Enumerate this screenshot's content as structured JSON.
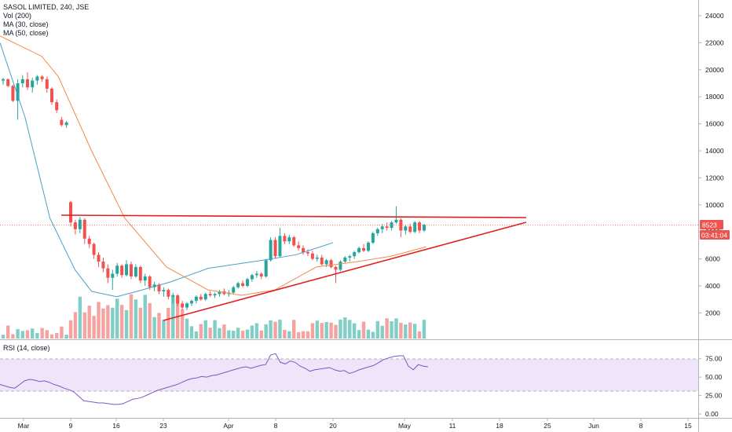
{
  "header": {
    "title": "SASOL LIMITED, 240, JSE",
    "volume_label": "Vol (200)",
    "ma30_label": "MA (30, close)",
    "ma50_label": "MA (50, close)"
  },
  "rsi_pane": {
    "label": "RSI (14, close)",
    "ticks": [
      "75.00",
      "50.00",
      "25.00",
      "0.00"
    ]
  },
  "price_axis": {
    "ticks": [
      "24000",
      "22000",
      "20000",
      "18000",
      "16000",
      "14000",
      "12000",
      "10000",
      "8000",
      "6000",
      "4000",
      "2000"
    ]
  },
  "time_axis": {
    "ticks": [
      "Mar",
      "9",
      "16",
      "23",
      "Apr",
      "8",
      "20",
      "May",
      "11",
      "18",
      "25",
      "Jun",
      "8",
      "15"
    ]
  },
  "last_price": {
    "value": "8523",
    "countdown": "03:41:04"
  },
  "colors": {
    "up": "#26a69a",
    "down": "#ef5350",
    "ma30": "#4a9fc8",
    "ma50": "#f08a4b",
    "trendline": "#e31e1e",
    "rsi": "#7e57c2",
    "rsi_band": "#f0e4fb",
    "vol_up": "#7fcfc6",
    "vol_down": "#f4a3a0"
  },
  "chart_data": [
    {
      "type": "candlestick",
      "title": "SASOL LIMITED, 240, JSE",
      "ylim": [
        1000,
        25200
      ],
      "candles": [
        [
          19200,
          19400,
          18900,
          19300
        ],
        [
          19300,
          19350,
          18700,
          18800
        ],
        [
          18800,
          18900,
          17600,
          17700
        ],
        [
          17700,
          19300,
          16300,
          19000
        ],
        [
          19000,
          19600,
          18700,
          19300
        ],
        [
          19300,
          19800,
          18500,
          18700
        ],
        [
          18700,
          19400,
          18300,
          19200
        ],
        [
          19200,
          19600,
          18900,
          19500
        ],
        [
          19500,
          19600,
          19100,
          19300
        ],
        [
          19300,
          19500,
          18300,
          18600
        ],
        [
          18600,
          18700,
          17400,
          17600
        ],
        [
          17600,
          17800,
          16800,
          17000
        ],
        [
          16300,
          16500,
          15800,
          15900
        ],
        [
          15900,
          16200,
          15700,
          16100
        ],
        [
          10200,
          10300,
          8400,
          8700
        ],
        [
          8700,
          8900,
          7800,
          8200
        ],
        [
          8200,
          9100,
          7900,
          8900
        ],
        [
          8900,
          9000,
          7100,
          7500
        ],
        [
          7500,
          7700,
          6800,
          7100
        ],
        [
          7100,
          7200,
          6000,
          6300
        ],
        [
          6300,
          6500,
          5400,
          5800
        ],
        [
          5800,
          6100,
          5000,
          5300
        ],
        [
          5300,
          5600,
          4200,
          4600
        ],
        [
          4600,
          5200,
          3700,
          4900
        ],
        [
          4900,
          5700,
          4700,
          5500
        ],
        [
          5500,
          5600,
          4600,
          4800
        ],
        [
          4800,
          5900,
          4700,
          5600
        ],
        [
          5600,
          5800,
          4500,
          4700
        ],
        [
          4700,
          5600,
          4600,
          5400
        ],
        [
          5400,
          5500,
          4200,
          4400
        ],
        [
          4400,
          4900,
          4000,
          4700
        ],
        [
          4700,
          4800,
          3700,
          3900
        ],
        [
          3900,
          4300,
          3600,
          4100
        ],
        [
          4100,
          4200,
          3400,
          3600
        ],
        [
          3600,
          3900,
          3200,
          3700
        ],
        [
          3700,
          3800,
          3000,
          3200
        ],
        [
          3200,
          3500,
          2700,
          3300
        ],
        [
          3300,
          3400,
          2500,
          2700
        ],
        [
          2700,
          2900,
          2200,
          2400
        ],
        [
          2400,
          2800,
          2200,
          2700
        ],
        [
          2700,
          3000,
          2500,
          2900
        ],
        [
          2900,
          3300,
          2700,
          3200
        ],
        [
          3200,
          3400,
          2900,
          3000
        ],
        [
          3000,
          3500,
          2900,
          3400
        ],
        [
          3400,
          3600,
          3200,
          3300
        ],
        [
          3300,
          3500,
          3100,
          3400
        ],
        [
          3400,
          3700,
          3200,
          3600
        ],
        [
          3600,
          3800,
          3300,
          3400
        ],
        [
          3400,
          3700,
          3200,
          3500
        ],
        [
          3500,
          4000,
          3400,
          3900
        ],
        [
          3900,
          4300,
          3800,
          4200
        ],
        [
          4200,
          4400,
          3900,
          4000
        ],
        [
          4000,
          4600,
          3900,
          4500
        ],
        [
          4500,
          4900,
          4300,
          4800
        ],
        [
          4800,
          5100,
          4600,
          4900
        ],
        [
          4900,
          5000,
          4500,
          4700
        ],
        [
          4700,
          6000,
          4600,
          5900
        ],
        [
          5900,
          7600,
          5800,
          7400
        ],
        [
          7400,
          7600,
          6000,
          6200
        ],
        [
          6200,
          8300,
          6100,
          7700
        ],
        [
          7700,
          7900,
          7100,
          7300
        ],
        [
          7300,
          7800,
          7100,
          7600
        ],
        [
          7600,
          7700,
          6900,
          7000
        ],
        [
          7000,
          7300,
          6600,
          6800
        ],
        [
          6800,
          7000,
          6300,
          6500
        ],
        [
          6500,
          6700,
          6200,
          6400
        ],
        [
          6400,
          6600,
          5900,
          6000
        ],
        [
          6000,
          6300,
          5800,
          6100
        ],
        [
          6100,
          6300,
          5500,
          5600
        ],
        [
          5600,
          6000,
          5400,
          5900
        ],
        [
          5900,
          6000,
          5300,
          5400
        ],
        [
          5400,
          5500,
          4200,
          5200
        ],
        [
          5200,
          5900,
          5100,
          5800
        ],
        [
          5800,
          6200,
          5700,
          6100
        ],
        [
          6100,
          6300,
          5800,
          6200
        ],
        [
          6200,
          6600,
          6000,
          6500
        ],
        [
          6500,
          6900,
          6400,
          6800
        ],
        [
          6800,
          7100,
          6500,
          6600
        ],
        [
          6600,
          7300,
          6500,
          7200
        ],
        [
          7200,
          8000,
          7100,
          7900
        ],
        [
          7900,
          8300,
          7700,
          8200
        ],
        [
          8200,
          8600,
          7900,
          8400
        ],
        [
          8400,
          8700,
          8100,
          8300
        ],
        [
          8300,
          8800,
          8100,
          8700
        ],
        [
          8700,
          9900,
          8600,
          8900
        ],
        [
          8900,
          9000,
          7600,
          8100
        ],
        [
          8100,
          8500,
          7800,
          8400
        ],
        [
          8400,
          8600,
          7900,
          8000
        ],
        [
          8000,
          8800,
          7900,
          8700
        ],
        [
          8700,
          8800,
          7900,
          8100
        ],
        [
          8100,
          8600,
          8000,
          8523
        ]
      ],
      "ma30": [
        [
          0,
          22000
        ],
        [
          30,
          16500
        ],
        [
          60,
          9000
        ],
        [
          90,
          5200
        ],
        [
          110,
          3600
        ],
        [
          140,
          3200
        ],
        [
          165,
          3600
        ],
        [
          205,
          4300
        ],
        [
          250,
          5300
        ],
        [
          315,
          5900
        ],
        [
          355,
          6300
        ],
        [
          380,
          6800
        ],
        [
          400,
          7200
        ]
      ],
      "ma50": [
        [
          0,
          22500
        ],
        [
          50,
          21000
        ],
        [
          70,
          19500
        ],
        [
          110,
          14000
        ],
        [
          150,
          9000
        ],
        [
          200,
          5400
        ],
        [
          250,
          3700
        ],
        [
          290,
          3300
        ],
        [
          330,
          3700
        ],
        [
          380,
          5400
        ],
        [
          430,
          5800
        ],
        [
          470,
          6200
        ],
        [
          512,
          6900
        ]
      ]
    },
    {
      "type": "bar",
      "title": "Vol (200)",
      "ylim": [
        0,
        100
      ]
    },
    {
      "type": "line",
      "title": "RSI (14, close)",
      "ylim": [
        0,
        90
      ],
      "band": [
        30,
        70
      ],
      "values": [
        40,
        38,
        36,
        35,
        40,
        45,
        47,
        46,
        44,
        45,
        43,
        40,
        38,
        35,
        33,
        30,
        24,
        18,
        17,
        16,
        15,
        15,
        14,
        13,
        13,
        14,
        17,
        20,
        21,
        23,
        26,
        29,
        32,
        34,
        36,
        38,
        40,
        43,
        46,
        48,
        49,
        51,
        50,
        52,
        53,
        55,
        57,
        59,
        61,
        63,
        64,
        62,
        64,
        66,
        67,
        80,
        82,
        70,
        68,
        72,
        70,
        65,
        62,
        58,
        60,
        61,
        62,
        63,
        60,
        58,
        59,
        55,
        57,
        60,
        62,
        64,
        66,
        70,
        74,
        76,
        78,
        79,
        79,
        65,
        60,
        67,
        65,
        64
      ]
    }
  ]
}
